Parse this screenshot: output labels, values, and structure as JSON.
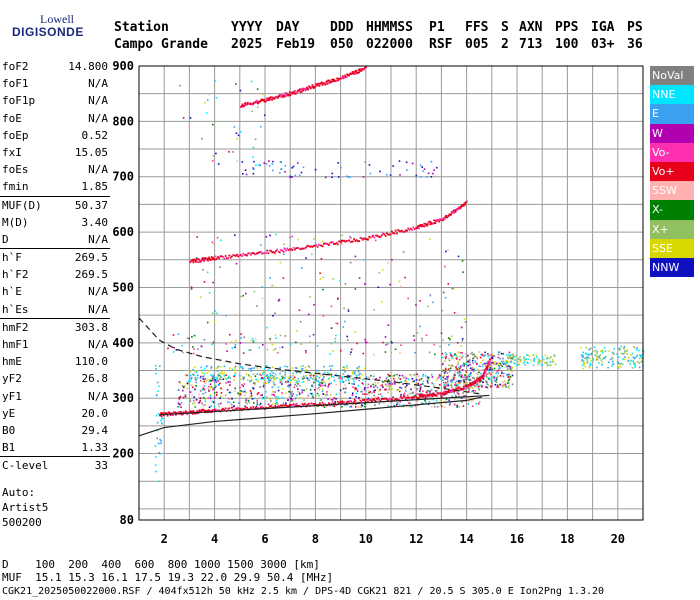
{
  "logo": {
    "top": "Lowell",
    "main": "DIGISONDE"
  },
  "header": {
    "labels": [
      "Station",
      "YYYY",
      "DAY",
      "DDD",
      "HHMMSS",
      "P1",
      "FFS",
      "S",
      "AXN",
      "PPS",
      "IGA",
      "PS"
    ],
    "values": [
      "Campo Grande",
      "2025",
      "Feb19",
      "050",
      "022000",
      "RSF",
      "005",
      "2",
      "713",
      "100",
      "03+",
      "36"
    ]
  },
  "params": [
    {
      "label": "foF2",
      "value": "14.800"
    },
    {
      "label": "foF1",
      "value": "N/A"
    },
    {
      "label": "foF1p",
      "value": "N/A"
    },
    {
      "label": "foE",
      "value": "N/A"
    },
    {
      "label": "foEp",
      "value": "0.52"
    },
    {
      "label": "fxI",
      "value": "15.05"
    },
    {
      "label": "foEs",
      "value": "N/A"
    },
    {
      "label": "fmin",
      "value": "1.85"
    },
    {
      "label": "MUF(D)",
      "value": "50.37",
      "sep": true
    },
    {
      "label": "M(D)",
      "value": "3.40"
    },
    {
      "label": "D",
      "value": "N/A"
    },
    {
      "label": "h`F",
      "value": "269.5",
      "sep": true
    },
    {
      "label": "h`F2",
      "value": "269.5"
    },
    {
      "label": "h`E",
      "value": "N/A"
    },
    {
      "label": "h`Es",
      "value": "N/A"
    },
    {
      "label": "hmF2",
      "value": "303.8",
      "sep": true
    },
    {
      "label": "hmF1",
      "value": "N/A"
    },
    {
      "label": "hmE",
      "value": "110.0"
    },
    {
      "label": "yF2",
      "value": "26.8"
    },
    {
      "label": "yF1",
      "value": "N/A"
    },
    {
      "label": "yE",
      "value": "20.0"
    },
    {
      "label": "B0",
      "value": "29.4"
    },
    {
      "label": "B1",
      "value": "1.33"
    },
    {
      "label": "C-level",
      "value": "33",
      "sep": true
    }
  ],
  "autoscaling": {
    "line1": "Auto:",
    "line2": "Artist5",
    "line3": "500200"
  },
  "legend": [
    {
      "label": "NoVal",
      "color": "#808080"
    },
    {
      "label": "NNE",
      "color": "#00e5ff"
    },
    {
      "label": "E",
      "color": "#3aa0f0"
    },
    {
      "label": "W",
      "color": "#b000b0"
    },
    {
      "label": "Vo-",
      "color": "#ff30b0"
    },
    {
      "label": "Vo+",
      "color": "#e8001a"
    },
    {
      "label": "SSW",
      "color": "#ffb0b0"
    },
    {
      "label": "X-",
      "color": "#008000"
    },
    {
      "label": "X+",
      "color": "#90c060"
    },
    {
      "label": "SSE",
      "color": "#d8d800"
    },
    {
      "label": "NNW",
      "color": "#1010c0"
    }
  ],
  "bottom": {
    "d_line": "D    100  200  400  600  800 1000 1500 3000 [km]",
    "muf_line": "MUF  15.1 15.3 16.1 17.5 19.3 22.0 29.9 50.4 [MHz]",
    "file_line": "CGK21_2025050022000.RSF / 404fx512h 50 kHz 2.5 km / DPS-4D CGK21 821 / 20.5 S 305.0 E Ion2Png 1.3.20"
  },
  "chart_data": {
    "type": "scatter",
    "xlim": [
      1,
      21
    ],
    "ylim": [
      80,
      900
    ],
    "x_ticks": [
      2,
      4,
      6,
      8,
      10,
      12,
      14,
      16,
      18,
      20
    ],
    "y_ticks": [
      200,
      300,
      400,
      500,
      600,
      700,
      800,
      900
    ],
    "x_tick_labels": [
      "2",
      "4",
      "6",
      "8",
      "10",
      "12",
      "14",
      "16",
      "18",
      "20"
    ],
    "y_tick_labels": [
      "200",
      "300",
      "400",
      "500",
      "600",
      "700",
      "800",
      "900"
    ],
    "y_bottom_label": "80",
    "grid": true,
    "traces": [
      {
        "name": "F2 trace",
        "color": "#e8001a",
        "x": [
          1.8,
          3,
          4,
          6,
          8,
          10,
          12,
          13,
          14,
          14.6,
          14.9
        ],
        "y": [
          272,
          276,
          280,
          285,
          290,
          296,
          304,
          310,
          322,
          340,
          370
        ]
      },
      {
        "name": "2F trace",
        "color": "#e8001a",
        "x": [
          3,
          4,
          6,
          8,
          10,
          12,
          13,
          14
        ],
        "y": [
          548,
          555,
          565,
          576,
          590,
          610,
          625,
          655
        ]
      },
      {
        "name": "3F trace",
        "color": "#e8001a",
        "x": [
          5,
          6,
          7,
          8,
          9,
          10
        ],
        "y": [
          830,
          840,
          852,
          866,
          880,
          898
        ]
      }
    ],
    "profile_lines": [
      {
        "style": "solid",
        "x": [
          1,
          2,
          4,
          6,
          8,
          10,
          12,
          14,
          14.6
        ],
        "y": [
          232,
          247,
          258,
          265,
          272,
          280,
          288,
          296,
          302
        ]
      },
      {
        "style": "solid",
        "x": [
          1.8,
          14.9
        ],
        "y": [
          270,
          305
        ]
      },
      {
        "style": "dashed",
        "x": [
          1,
          1.8,
          2.5,
          3.5,
          5,
          7,
          9,
          11,
          13,
          14.5
        ],
        "y": [
          445,
          405,
          388,
          375,
          362,
          350,
          340,
          330,
          318,
          308
        ]
      }
    ]
  }
}
